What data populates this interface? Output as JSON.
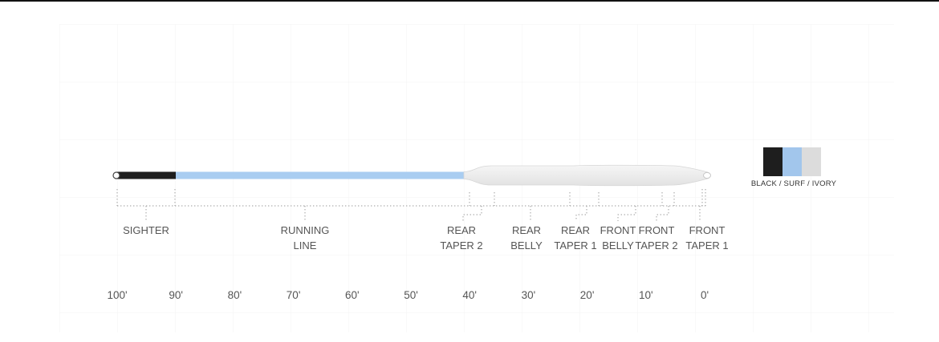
{
  "line_colors": {
    "sighter": "#1e1e1e",
    "running_line": "#a9cdf1",
    "head": "#eeeeee",
    "head_outline": "#d6d6d6"
  },
  "swatch": {
    "label": "BLACK / SURF / IVORY",
    "colors": [
      "#1e1e1e",
      "#a2c6ec",
      "#dcdcdc"
    ]
  },
  "sections": [
    {
      "id": "sighter",
      "lines": [
        "SIGHTER"
      ]
    },
    {
      "id": "running-line",
      "lines": [
        "RUNNING",
        "LINE"
      ]
    },
    {
      "id": "rear-taper-2",
      "lines": [
        "REAR",
        "TAPER 2"
      ]
    },
    {
      "id": "rear-belly",
      "lines": [
        "REAR",
        "BELLY"
      ]
    },
    {
      "id": "rear-taper-1",
      "lines": [
        "REAR",
        "TAPER 1"
      ]
    },
    {
      "id": "front-belly",
      "lines": [
        "FRONT",
        "BELLY"
      ]
    },
    {
      "id": "front-taper-2",
      "lines": [
        "FRONT",
        "TAPER 2"
      ]
    },
    {
      "id": "front-taper-1",
      "lines": [
        "FRONT",
        "TAPER 1"
      ]
    }
  ],
  "scale": {
    "ticks": [
      {
        "feet": 100,
        "label": "100'"
      },
      {
        "feet": 90,
        "label": "90'"
      },
      {
        "feet": 80,
        "label": "80'"
      },
      {
        "feet": 70,
        "label": "70'"
      },
      {
        "feet": 60,
        "label": "60'"
      },
      {
        "feet": 50,
        "label": "50'"
      },
      {
        "feet": 40,
        "label": "40'"
      },
      {
        "feet": 30,
        "label": "30'"
      },
      {
        "feet": 20,
        "label": "20'"
      },
      {
        "feet": 10,
        "label": "10'"
      },
      {
        "feet": 0,
        "label": "0'"
      }
    ]
  }
}
